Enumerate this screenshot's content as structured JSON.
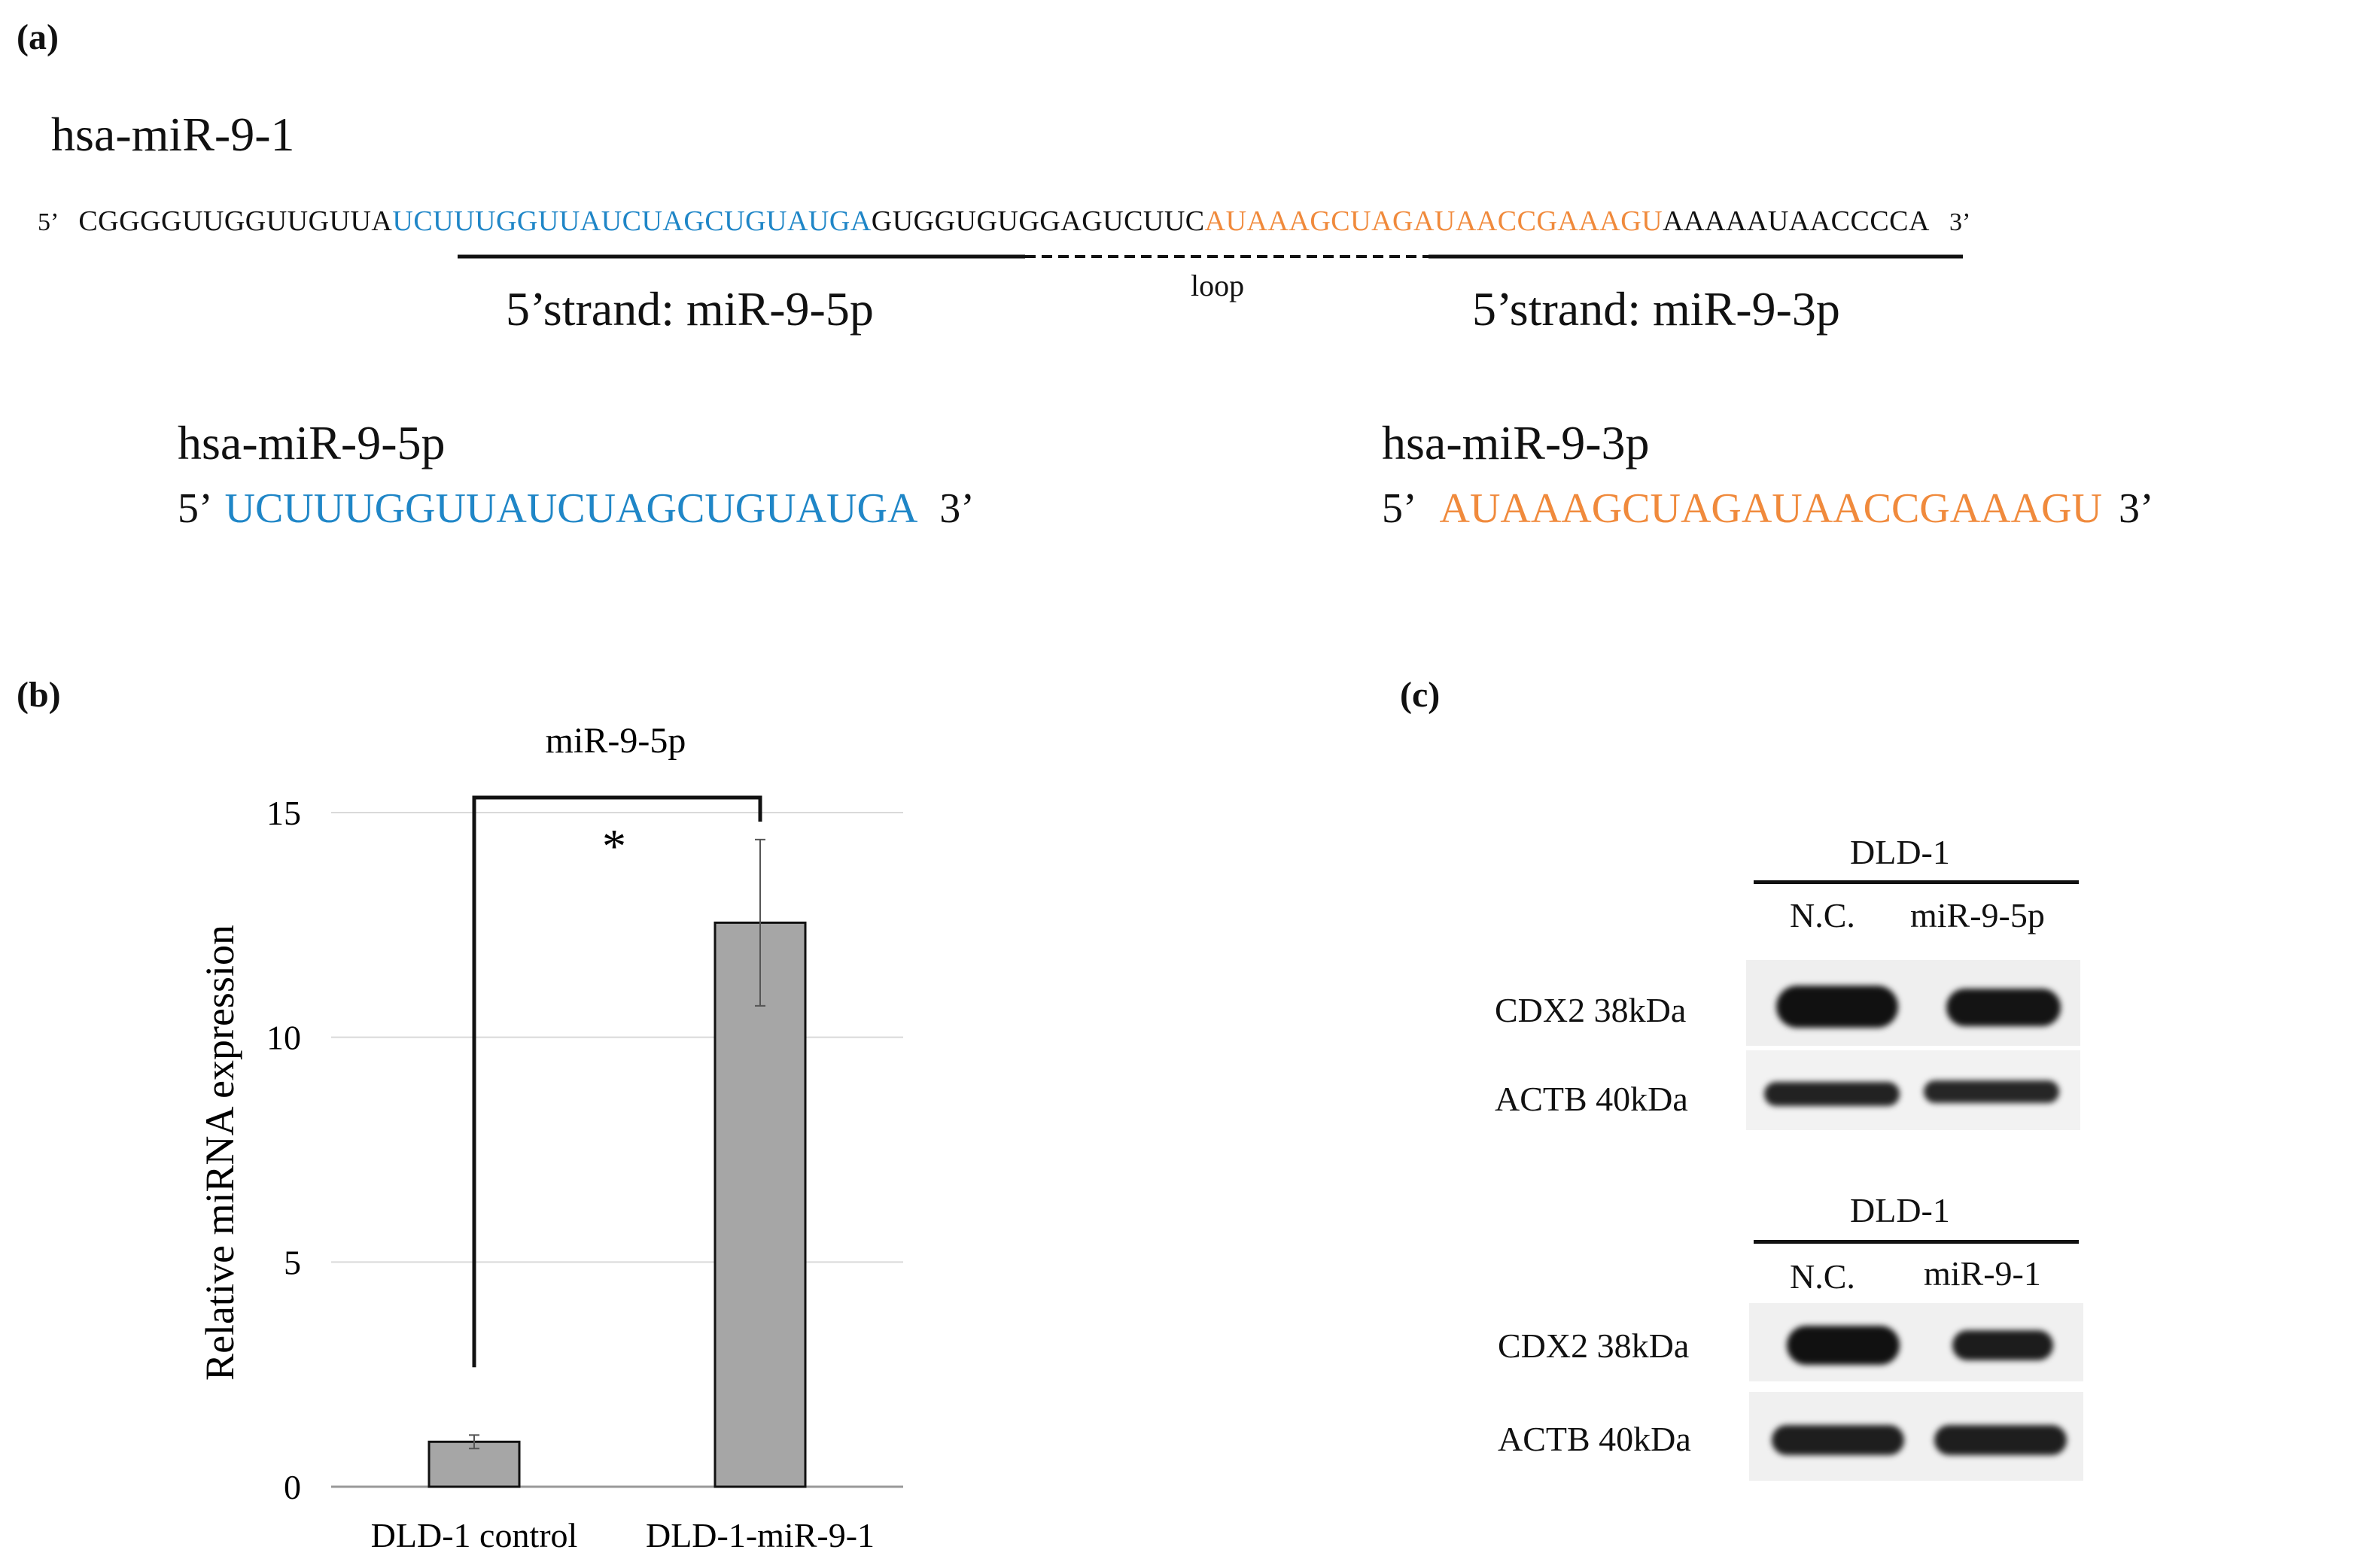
{
  "panel_a": {
    "label": "(a)",
    "title": "hsa-miR-9-1",
    "seq_prime5": "5’",
    "seq_prime3": "3’",
    "seq_prefix": "CGGGGUUGGUUGUUA",
    "seq_5p": "UCUUUGGUUAUCUAGCUGUAUGA",
    "seq_loop": "GUGGUGUGGAGUCUUC",
    "seq_3p": "AUAAAGCUAGAUAACCGAAAGU",
    "seq_suffix": "AAAAAUAACCCCA",
    "strand_5p_label": "5’strand: miR-9-5p",
    "loop_label": "loop",
    "strand_3p_label": "5’strand: miR-9-3p",
    "mature_5p": {
      "title": "hsa-miR-9-5p",
      "prime5": "5’",
      "seq": "UCUUUGGUUAUCUAGCUGUAUGA",
      "prime3": "3’"
    },
    "mature_3p": {
      "title": "hsa-miR-9-3p",
      "prime5": "5’",
      "seq": "AUAAAGCUAGAUAACCGAAAGU",
      "prime3": "3’"
    },
    "colors": {
      "mir5p": "#1f86c7",
      "mir3p": "#f08a3c"
    }
  },
  "panel_b": {
    "label": "(b)",
    "chart_data": {
      "type": "bar",
      "title": "miR-9-5p",
      "ylabel": "Relative miRNA expression",
      "xlabel": "",
      "categories": [
        "DLD-1 control",
        "DLD-1-miR-9-1"
      ],
      "values": [
        1.0,
        12.55
      ],
      "error": [
        0.15,
        1.85
      ],
      "ylim": [
        0,
        15
      ],
      "yticks": [
        "0",
        "5",
        "10",
        "15"
      ],
      "ytick_values": [
        0,
        5,
        10,
        15
      ],
      "grid": true,
      "significance": "*",
      "bar_color": "#a6a6a6"
    }
  },
  "panel_c": {
    "label": "(c)",
    "blots": [
      {
        "cell_line": "DLD-1",
        "lanes": [
          "N.C.",
          "miR-9-5p"
        ],
        "rows": [
          "CDX2 38kDa",
          "ACTB 40kDa"
        ]
      },
      {
        "cell_line": "DLD-1",
        "lanes": [
          "N.C.",
          "miR-9-1"
        ],
        "rows": [
          "CDX2 38kDa",
          "ACTB 40kDa"
        ]
      }
    ]
  }
}
